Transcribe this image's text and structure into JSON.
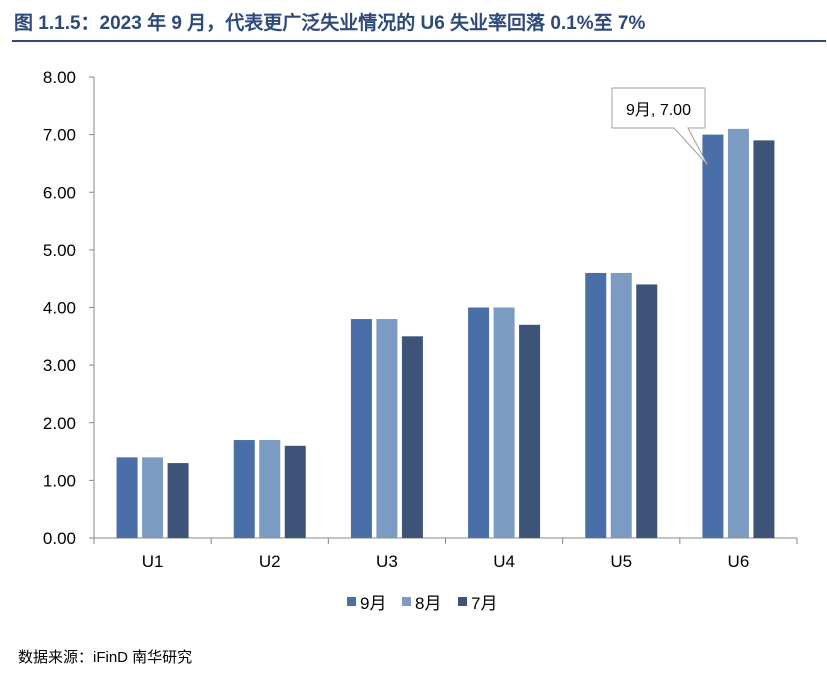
{
  "page": {
    "title": "图 1.1.5：2023 年 9 月，代表更广泛失业情况的 U6 失业率回落 0.1%至 7%",
    "source": "数据来源：iFinD 南华研究"
  },
  "colors": {
    "title": "#2d4a7a",
    "axis": "#888888"
  },
  "chart_data": {
    "type": "bar",
    "categories": [
      "U1",
      "U2",
      "U3",
      "U4",
      "U5",
      "U6"
    ],
    "series": [
      {
        "name": "9月",
        "color": "#4a6ea8",
        "values": [
          1.4,
          1.7,
          3.8,
          4.0,
          4.6,
          7.0
        ]
      },
      {
        "name": "8月",
        "color": "#7b9bc2",
        "values": [
          1.4,
          1.7,
          3.8,
          4.0,
          4.6,
          7.1
        ]
      },
      {
        "name": "7月",
        "color": "#3d5478",
        "values": [
          1.3,
          1.6,
          3.5,
          3.7,
          4.4,
          6.9
        ]
      }
    ],
    "ylim": [
      0,
      8
    ],
    "yticks": [
      "0.00",
      "1.00",
      "2.00",
      "3.00",
      "4.00",
      "5.00",
      "6.00",
      "7.00",
      "8.00"
    ],
    "xlabel": "",
    "ylabel": "",
    "grid": false,
    "legend_position": "bottom",
    "annotation": {
      "text": "9月, 7.00",
      "series": 0,
      "category": "U6"
    }
  }
}
